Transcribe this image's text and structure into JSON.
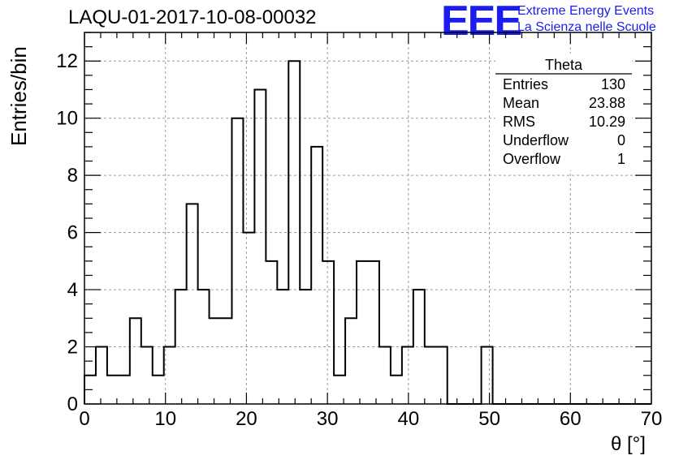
{
  "chart_data": {
    "type": "bar",
    "subtype": "histogram-step",
    "title": "LAQU-01-2017-10-08-00032",
    "xlabel": "θ [°]",
    "ylabel": "Entries/bin",
    "xlim": [
      0,
      70
    ],
    "ylim": [
      0,
      13
    ],
    "bin_width": 1.4,
    "x_ticks": [
      0,
      10,
      20,
      30,
      40,
      50,
      60,
      70
    ],
    "y_ticks": [
      0,
      2,
      4,
      6,
      8,
      10,
      12
    ],
    "grid": true,
    "values": [
      1,
      2,
      1,
      1,
      3,
      2,
      1,
      2,
      4,
      7,
      4,
      3,
      3,
      10,
      6,
      11,
      5,
      4,
      12,
      4,
      9,
      5,
      1,
      3,
      5,
      5,
      2,
      1,
      2,
      4,
      2,
      2,
      0,
      0,
      0,
      2,
      0,
      0,
      0,
      0,
      0,
      0,
      0,
      0,
      0,
      0,
      0,
      0,
      0,
      0
    ],
    "line_color": "#000000",
    "stats_box": {
      "title": "Theta",
      "rows": [
        {
          "label": "Entries",
          "value": "130"
        },
        {
          "label": "Mean",
          "value": "23.88"
        },
        {
          "label": "RMS",
          "value": "10.29"
        },
        {
          "label": "Underflow",
          "value": "0"
        },
        {
          "label": "Overflow",
          "value": "1"
        }
      ]
    }
  },
  "logo": {
    "mark": "EEE",
    "line1": "Extreme Energy Events",
    "line2": "La Scienza nelle Scuole",
    "color": "#1c1cf0"
  }
}
